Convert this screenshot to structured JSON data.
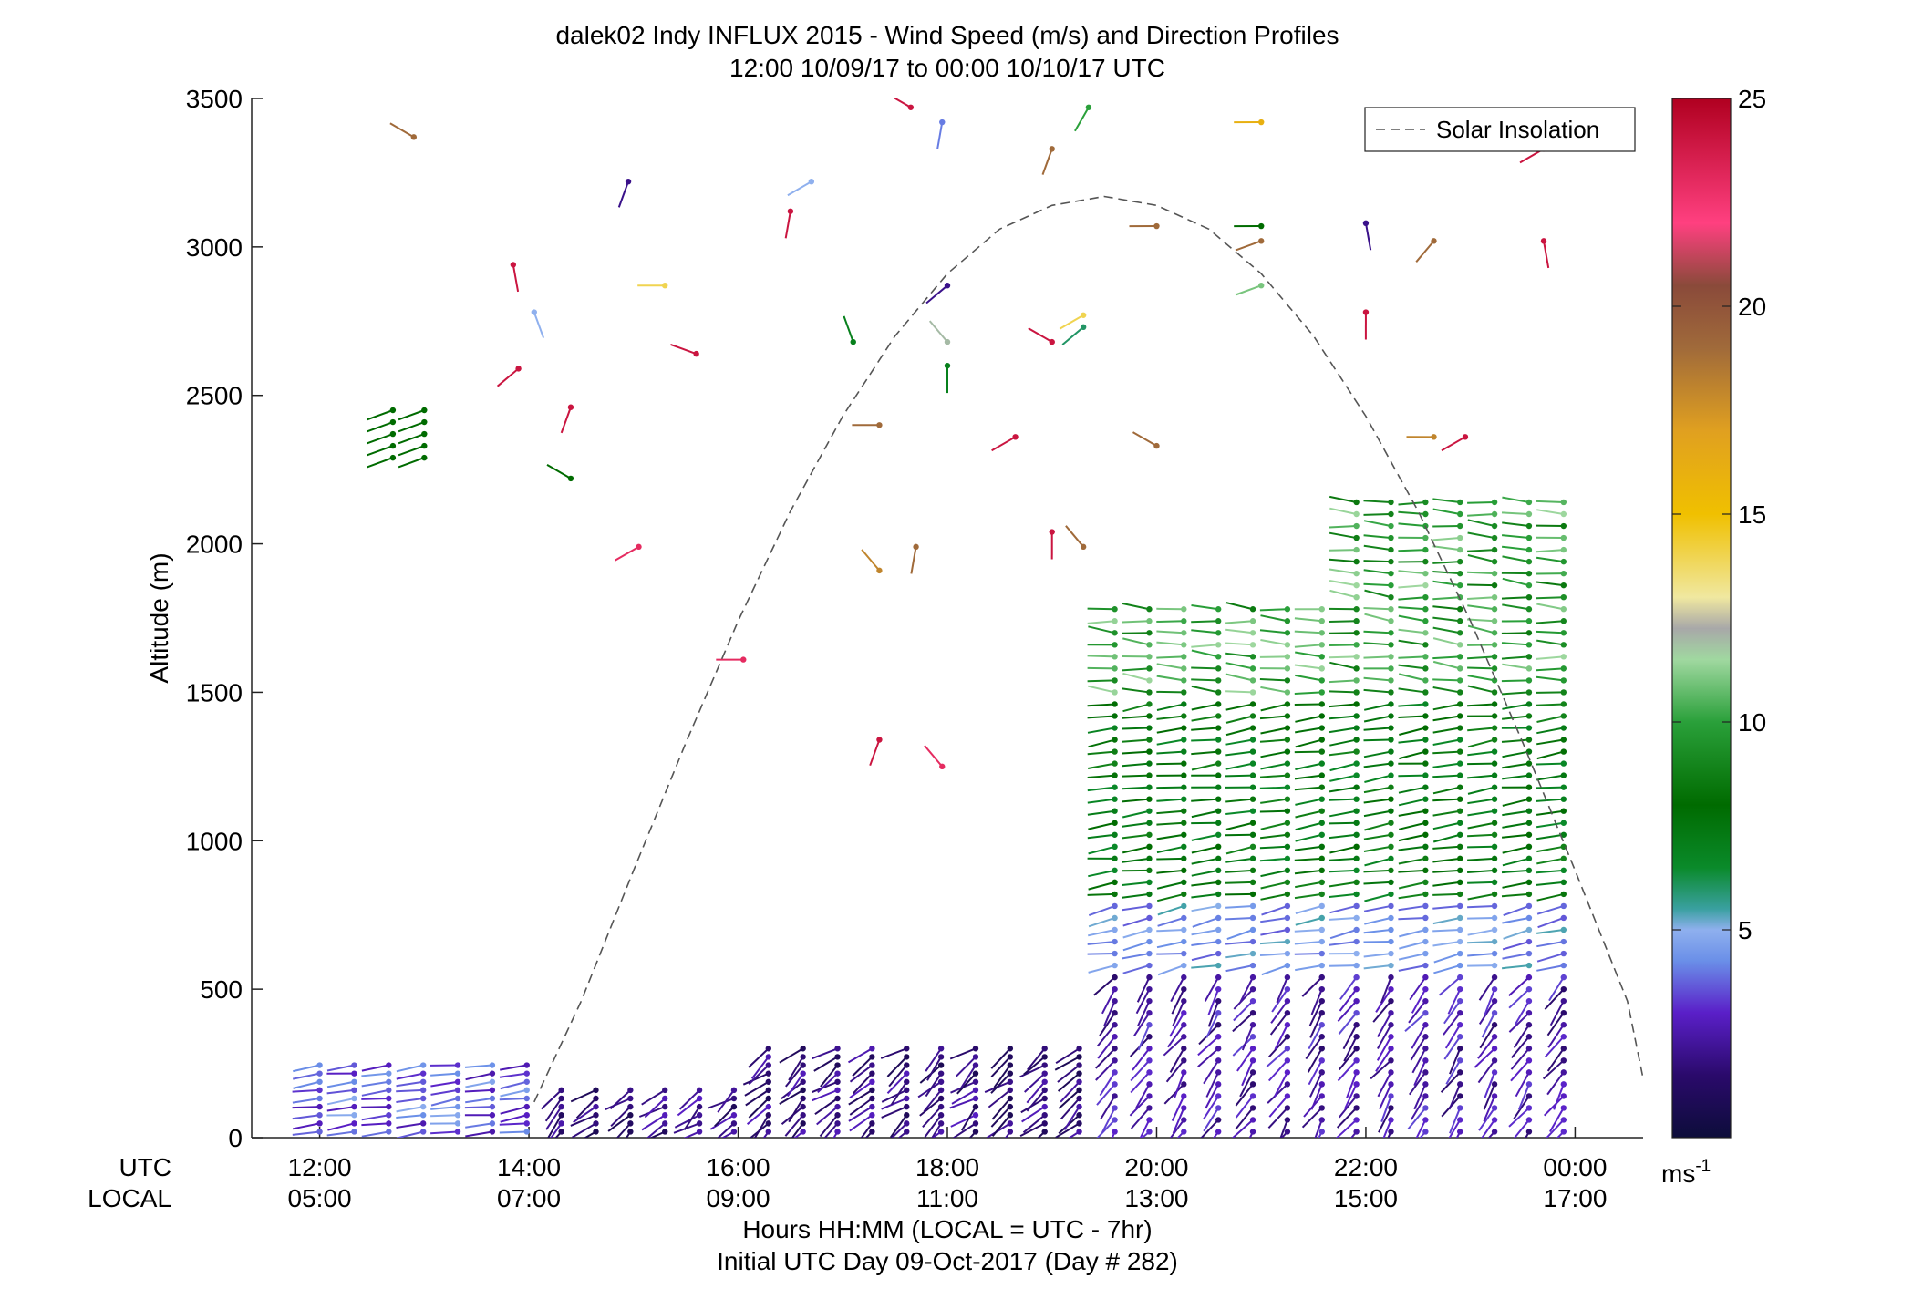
{
  "chart_data": {
    "type": "scatter",
    "title": "dalek02 Indy INFLUX 2015 - Wind Speed (m/s) and Direction Profiles",
    "subtitle": "12:00 10/09/17 to 00:00 10/10/17  UTC",
    "ylabel": "Altitude (m)",
    "xlabel": "Hours HH:MM  (LOCAL = UTC - 7hr)",
    "xlabel2": "Initial UTC Day 09-Oct-2017 (Day # 282)",
    "xrow_label_utc": "UTC",
    "xrow_label_local": "LOCAL",
    "xlim": [
      11.35,
      24.65
    ],
    "ylim": [
      0,
      3500
    ],
    "yticks": [
      0,
      500,
      1000,
      1500,
      2000,
      2500,
      3000,
      3500
    ],
    "xticks_utc": [
      "12:00",
      "14:00",
      "16:00",
      "18:00",
      "20:00",
      "22:00",
      "00:00"
    ],
    "xticks_local": [
      "05:00",
      "07:00",
      "09:00",
      "11:00",
      "13:00",
      "15:00",
      "17:00"
    ],
    "xtick_hours": [
      12,
      14,
      16,
      18,
      20,
      22,
      24
    ],
    "legend": {
      "entries": [
        "Solar Insolation"
      ],
      "placement": "top-right"
    },
    "colorbar": {
      "unit": "ms",
      "unit_exponent": "-1",
      "ticks": [
        5,
        10,
        15,
        20,
        25
      ],
      "range": [
        0,
        25
      ]
    },
    "solar_insolation": {
      "x": [
        14.05,
        14.5,
        15.0,
        15.5,
        16.0,
        16.5,
        17.0,
        17.5,
        18.0,
        18.5,
        19.0,
        19.5,
        20.0,
        20.5,
        21.0,
        21.5,
        22.0,
        22.5,
        23.0,
        23.5,
        24.0,
        24.5,
        24.65
      ],
      "y": [
        120,
        460,
        900,
        1330,
        1740,
        2110,
        2430,
        2700,
        2910,
        3060,
        3140,
        3170,
        3140,
        3060,
        2910,
        2700,
        2430,
        2110,
        1740,
        1330,
        900,
        460,
        200
      ]
    },
    "profiles": {
      "scattered_points": [
        {
          "t": 12.9,
          "z": 3370,
          "speed": 19,
          "dir": 300
        },
        {
          "t": 13.85,
          "z": 2940,
          "speed": 24,
          "dir": 170
        },
        {
          "t": 13.9,
          "z": 2590,
          "speed": 24,
          "dir": 230
        },
        {
          "t": 14.05,
          "z": 2780,
          "speed": 5,
          "dir": 160
        },
        {
          "t": 14.4,
          "z": 2460,
          "speed": 24,
          "dir": 200
        },
        {
          "t": 14.4,
          "z": 2220,
          "speed": 8,
          "dir": 300
        },
        {
          "t": 14.95,
          "z": 3220,
          "speed": 2,
          "dir": 200
        },
        {
          "t": 15.05,
          "z": 1990,
          "speed": 23,
          "dir": 240
        },
        {
          "t": 15.3,
          "z": 2870,
          "speed": 14,
          "dir": 270
        },
        {
          "t": 15.6,
          "z": 2640,
          "speed": 24,
          "dir": 290
        },
        {
          "t": 16.05,
          "z": 1610,
          "speed": 23,
          "dir": 270
        },
        {
          "t": 16.5,
          "z": 3120,
          "speed": 24,
          "dir": 190
        },
        {
          "t": 16.7,
          "z": 3220,
          "speed": 5,
          "dir": 240
        },
        {
          "t": 17.1,
          "z": 2680,
          "speed": 7,
          "dir": 340
        },
        {
          "t": 17.35,
          "z": 2400,
          "speed": 19,
          "dir": 270
        },
        {
          "t": 17.35,
          "z": 1340,
          "speed": 24,
          "dir": 200
        },
        {
          "t": 17.35,
          "z": 1910,
          "speed": 18,
          "dir": 320
        },
        {
          "t": 17.65,
          "z": 3470,
          "speed": 24,
          "dir": 300
        },
        {
          "t": 17.7,
          "z": 1990,
          "speed": 19,
          "dir": 190
        },
        {
          "t": 17.95,
          "z": 3420,
          "speed": 4,
          "dir": 190
        },
        {
          "t": 17.95,
          "z": 1250,
          "speed": 23,
          "dir": 320
        },
        {
          "t": 18.0,
          "z": 2680,
          "speed": 12,
          "dir": 320
        },
        {
          "t": 18.0,
          "z": 2870,
          "speed": 2,
          "dir": 230
        },
        {
          "t": 18.0,
          "z": 2600,
          "speed": 7,
          "dir": 180
        },
        {
          "t": 18.65,
          "z": 2360,
          "speed": 24,
          "dir": 240
        },
        {
          "t": 19.0,
          "z": 2680,
          "speed": 24,
          "dir": 300
        },
        {
          "t": 19.0,
          "z": 2040,
          "speed": 24,
          "dir": 180
        },
        {
          "t": 19.0,
          "z": 3330,
          "speed": 19,
          "dir": 200
        },
        {
          "t": 19.3,
          "z": 2770,
          "speed": 14,
          "dir": 240
        },
        {
          "t": 19.3,
          "z": 2730,
          "speed": 6,
          "dir": 230
        },
        {
          "t": 19.3,
          "z": 1990,
          "speed": 19,
          "dir": 320
        },
        {
          "t": 19.35,
          "z": 3470,
          "speed": 10,
          "dir": 210
        },
        {
          "t": 20.0,
          "z": 3070,
          "speed": 19,
          "dir": 270
        },
        {
          "t": 20.0,
          "z": 2330,
          "speed": 19,
          "dir": 300
        },
        {
          "t": 21.0,
          "z": 3420,
          "speed": 16,
          "dir": 270
        },
        {
          "t": 21.0,
          "z": 3020,
          "speed": 19,
          "dir": 250
        },
        {
          "t": 21.0,
          "z": 3070,
          "speed": 8,
          "dir": 270
        },
        {
          "t": 21.0,
          "z": 2870,
          "speed": 11,
          "dir": 250
        },
        {
          "t": 22.0,
          "z": 3080,
          "speed": 2,
          "dir": 170
        },
        {
          "t": 22.0,
          "z": 2780,
          "speed": 24,
          "dir": 180
        },
        {
          "t": 22.65,
          "z": 3020,
          "speed": 19,
          "dir": 220
        },
        {
          "t": 22.65,
          "z": 2360,
          "speed": 18,
          "dir": 270
        },
        {
          "t": 22.95,
          "z": 2360,
          "speed": 24,
          "dir": 240
        },
        {
          "t": 23.7,
          "z": 3020,
          "speed": 24,
          "dir": 170
        },
        {
          "t": 23.7,
          "z": 3330,
          "speed": 24,
          "dir": 240
        }
      ]
    }
  }
}
